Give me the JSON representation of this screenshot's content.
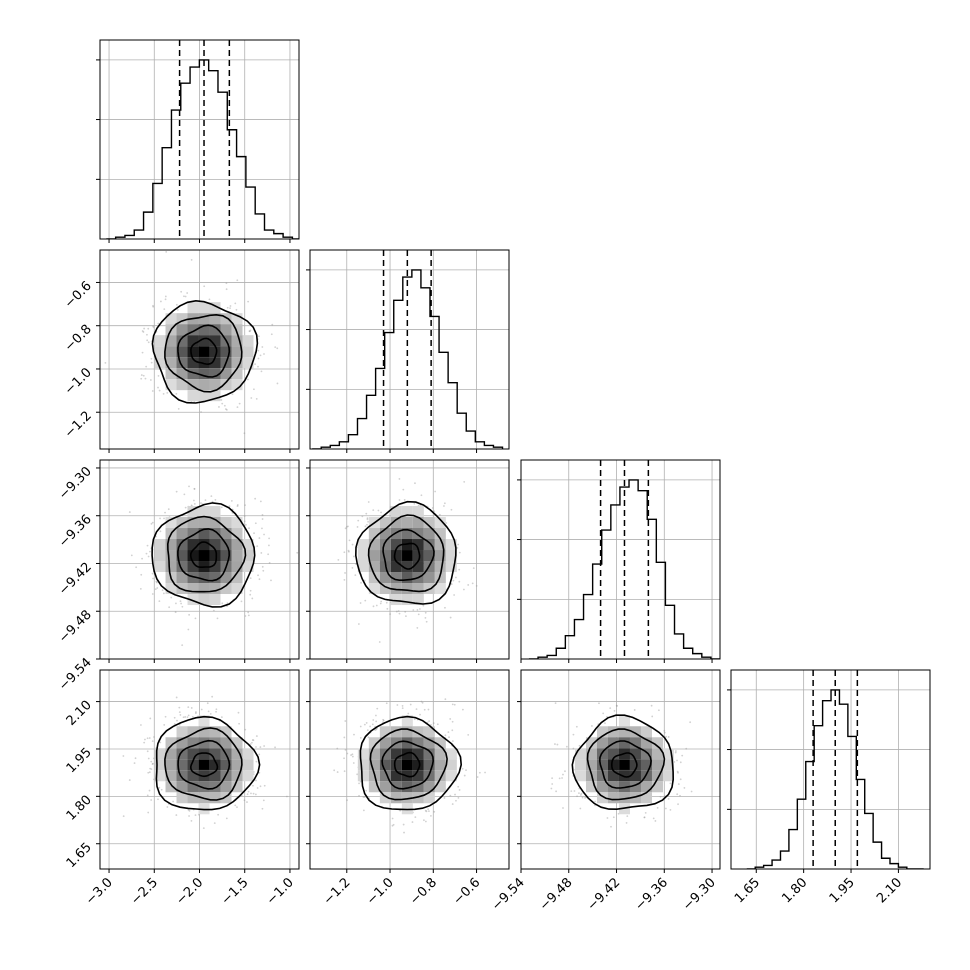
{
  "chart_data": {
    "type": "corner",
    "title": "",
    "parameters": [
      {
        "index": 0,
        "range": [
          -3.1,
          -0.9
        ],
        "ticks": [
          -3.0,
          -2.5,
          -2.0,
          -1.5,
          -1.0
        ],
        "tick_labels": [
          "−3.0",
          "−2.5",
          "−2.0",
          "−1.5",
          "−1.0"
        ],
        "median": -1.95,
        "quantile_16": -2.22,
        "quantile_84": -1.67,
        "sigma": 0.27
      },
      {
        "index": 1,
        "range": [
          -1.37,
          -0.45
        ],
        "ticks": [
          -1.2,
          -1.0,
          -0.8,
          -0.6
        ],
        "tick_labels": [
          "−1.2",
          "−1.0",
          "−0.8",
          "−0.6"
        ],
        "median": -0.92,
        "quantile_16": -1.03,
        "quantile_84": -0.81,
        "sigma": 0.11
      },
      {
        "index": 2,
        "range": [
          -9.54,
          -9.29
        ],
        "ticks": [
          -9.54,
          -9.48,
          -9.42,
          -9.36,
          -9.3
        ],
        "tick_labels": [
          "−9.54",
          "−9.48",
          "−9.42",
          "−9.36",
          "−9.30"
        ],
        "median": -9.41,
        "quantile_16": -9.44,
        "quantile_84": -9.38,
        "sigma": 0.03
      },
      {
        "index": 3,
        "range": [
          1.57,
          2.2
        ],
        "ticks": [
          1.65,
          1.8,
          1.95,
          2.1
        ],
        "tick_labels": [
          "1.65",
          "1.80",
          "1.95",
          "2.10"
        ],
        "median": 1.9,
        "quantile_16": 1.83,
        "quantile_84": 1.97,
        "sigma": 0.07
      }
    ],
    "histograms": [
      [
        0.0,
        0.01,
        0.02,
        0.05,
        0.15,
        0.31,
        0.51,
        0.72,
        0.87,
        0.96,
        1.0,
        0.94,
        0.82,
        0.61,
        0.46,
        0.29,
        0.14,
        0.05,
        0.03,
        0.01,
        0.0
      ],
      [
        0.0,
        0.01,
        0.02,
        0.04,
        0.08,
        0.17,
        0.3,
        0.45,
        0.65,
        0.83,
        0.96,
        1.0,
        0.9,
        0.74,
        0.54,
        0.37,
        0.2,
        0.1,
        0.04,
        0.02,
        0.01
      ],
      [
        0.0,
        0.01,
        0.02,
        0.06,
        0.13,
        0.22,
        0.36,
        0.53,
        0.72,
        0.86,
        0.96,
        1.0,
        0.94,
        0.78,
        0.54,
        0.3,
        0.14,
        0.06,
        0.03,
        0.01,
        0.0
      ],
      [
        0.0,
        0.01,
        0.02,
        0.05,
        0.1,
        0.22,
        0.39,
        0.6,
        0.8,
        0.94,
        1.0,
        0.92,
        0.74,
        0.5,
        0.31,
        0.15,
        0.06,
        0.03,
        0.01,
        0.0,
        0.0
      ]
    ],
    "contour_levels_sigma": [
      0.5,
      1.0,
      1.5,
      2.0
    ],
    "quantile_line_style": "dashed",
    "grid": true,
    "xlabel": "",
    "ylabel": ""
  }
}
